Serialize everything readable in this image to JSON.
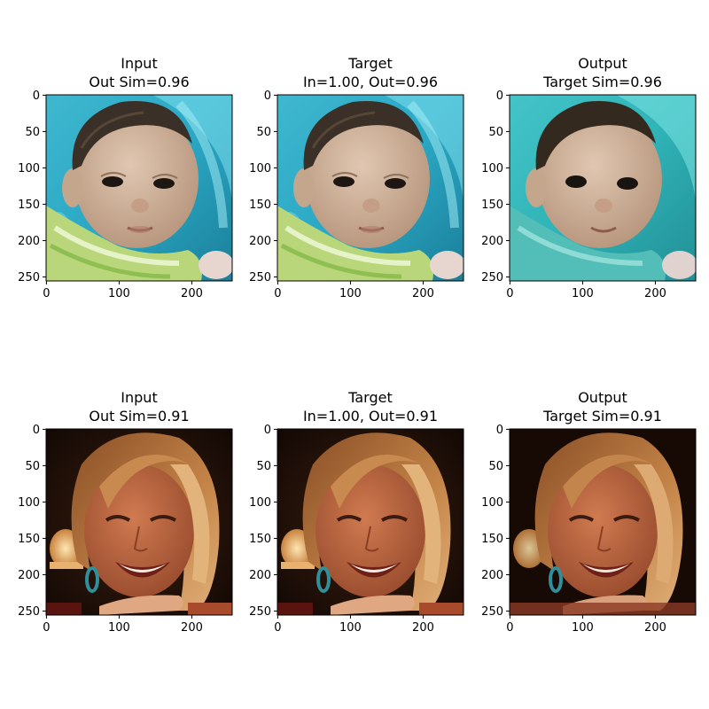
{
  "figure": {
    "rows": [
      {
        "name": "baby",
        "panels": [
          {
            "title_line1": "Input",
            "title_line2": "Out Sim=0.96"
          },
          {
            "title_line1": "Target",
            "title_line2": "In=1.00, Out=0.96"
          },
          {
            "title_line1": "Output",
            "title_line2": "Target Sim=0.96"
          }
        ]
      },
      {
        "name": "woman",
        "panels": [
          {
            "title_line1": "Input",
            "title_line2": "Out Sim=0.91"
          },
          {
            "title_line1": "Target",
            "title_line2": "In=1.00, Out=0.91"
          },
          {
            "title_line1": "Output",
            "title_line2": "Target Sim=0.91"
          }
        ]
      }
    ],
    "x_ticks": [
      "0",
      "100",
      "200"
    ],
    "y_ticks": [
      "0",
      "50",
      "100",
      "150",
      "200",
      "250"
    ],
    "colors": {
      "baby_background": "#2aa8c4",
      "baby_background_light": "#5fd2e3",
      "baby_skin": "#d1b7a0",
      "baby_hair": "#3a3027",
      "baby_shirt": "#b9d77a",
      "woman_background": "#1b0d06",
      "woman_hair": "#b8753f",
      "woman_skin": "#c06a44",
      "woman_teeth": "#f2ece2",
      "lamp": "#f0c78a",
      "earring": "#2f8f9a"
    }
  }
}
